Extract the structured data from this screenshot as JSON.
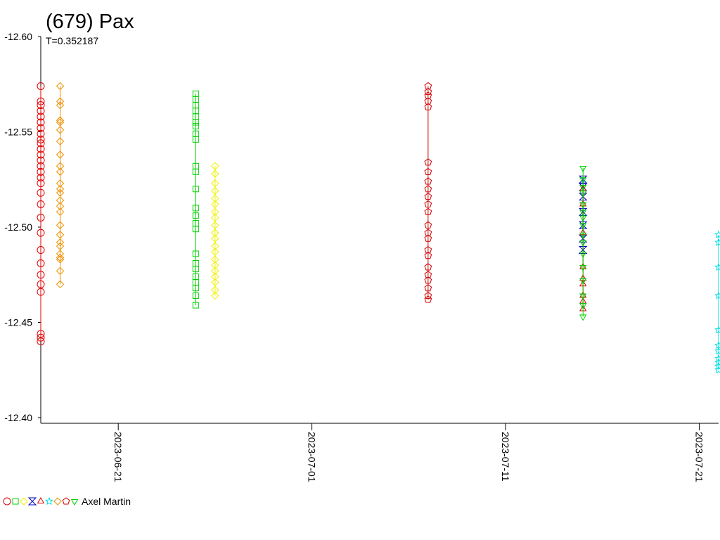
{
  "chart_data": {
    "type": "scatter",
    "title": "(679) Pax",
    "subtitle": "T=0.352187",
    "observer": "Axel Martin",
    "xlim": [
      "2023-06-17",
      "2023-07-22"
    ],
    "xticks": [
      "2023-06-21",
      "2023-07-01",
      "2023-07-11",
      "2023-07-21"
    ],
    "ylim": [
      -12.4,
      -12.6
    ],
    "yticks": [
      {
        "value": -12.6,
        "label": "-12.60"
      },
      {
        "value": -12.55,
        "label": "-12.55"
      },
      {
        "value": -12.5,
        "label": "-12.50"
      },
      {
        "value": -12.45,
        "label": "-12.45"
      },
      {
        "value": -12.4,
        "label": "-12.40"
      }
    ],
    "series": [
      {
        "marker": "circle",
        "color": "#e00000",
        "x": [
          "2023-06-17",
          "2023-06-17",
          "2023-06-17",
          "2023-06-17",
          "2023-06-17",
          "2023-06-17",
          "2023-06-17",
          "2023-06-17",
          "2023-06-17",
          "2023-06-17",
          "2023-06-17",
          "2023-06-17",
          "2023-06-17",
          "2023-06-17",
          "2023-06-17",
          "2023-06-17",
          "2023-06-17",
          "2023-06-17",
          "2023-06-17",
          "2023-06-17",
          "2023-06-17",
          "2023-06-17",
          "2023-06-17",
          "2023-06-17",
          "2023-06-17",
          "2023-06-17",
          "2023-06-17",
          "2023-06-17",
          "2023-06-17"
        ],
        "values": [
          -12.574,
          -12.566,
          -12.564,
          -12.561,
          -12.558,
          -12.555,
          -12.552,
          -12.549,
          -12.546,
          -12.544,
          -12.541,
          -12.538,
          -12.535,
          -12.532,
          -12.529,
          -12.526,
          -12.523,
          -12.518,
          -12.512,
          -12.505,
          -12.497,
          -12.488,
          -12.481,
          -12.475,
          -12.47,
          -12.466,
          -12.444,
          -12.442,
          -12.44
        ]
      },
      {
        "marker": "square",
        "color": "#00d000",
        "x": [
          "2023-06-25",
          "2023-06-25",
          "2023-06-25",
          "2023-06-25",
          "2023-06-25",
          "2023-06-25",
          "2023-06-25",
          "2023-06-25",
          "2023-06-25",
          "2023-06-25",
          "2023-06-25",
          "2023-06-25",
          "2023-06-25",
          "2023-06-25",
          "2023-06-25",
          "2023-06-25",
          "2023-06-25",
          "2023-06-25",
          "2023-06-25",
          "2023-06-25",
          "2023-06-25",
          "2023-06-25",
          "2023-06-25",
          "2023-06-25"
        ],
        "values": [
          -12.57,
          -12.567,
          -12.564,
          -12.561,
          -12.558,
          -12.555,
          -12.553,
          -12.549,
          -12.546,
          -12.532,
          -12.529,
          -12.52,
          -12.51,
          -12.506,
          -12.502,
          -12.499,
          -12.486,
          -12.481,
          -12.478,
          -12.474,
          -12.471,
          -12.468,
          -12.464,
          -12.459
        ]
      },
      {
        "marker": "diamond",
        "color": "#f0f000",
        "x": [
          "2023-06-26",
          "2023-06-26",
          "2023-06-26",
          "2023-06-26",
          "2023-06-26",
          "2023-06-26",
          "2023-06-26",
          "2023-06-26",
          "2023-06-26",
          "2023-06-26",
          "2023-06-26",
          "2023-06-26",
          "2023-06-26",
          "2023-06-26",
          "2023-06-26",
          "2023-06-26",
          "2023-06-26",
          "2023-06-26",
          "2023-06-26",
          "2023-06-26"
        ],
        "values": [
          -12.532,
          -12.528,
          -12.523,
          -12.519,
          -12.515,
          -12.512,
          -12.508,
          -12.505,
          -12.501,
          -12.497,
          -12.494,
          -12.49,
          -12.487,
          -12.483,
          -12.48,
          -12.477,
          -12.474,
          -12.471,
          -12.467,
          -12.464
        ]
      },
      {
        "marker": "bowtie",
        "color": "#0000c0",
        "x": [
          "2023-07-15",
          "2023-07-15",
          "2023-07-15",
          "2023-07-15",
          "2023-07-15",
          "2023-07-15",
          "2023-07-15"
        ],
        "values": [
          -12.525,
          -12.521,
          -12.516,
          -12.508,
          -12.501,
          -12.494,
          -12.488
        ]
      },
      {
        "marker": "triangle",
        "color": "#e00000",
        "x": [
          "2023-07-15",
          "2023-07-15",
          "2023-07-15",
          "2023-07-15",
          "2023-07-15",
          "2023-07-15",
          "2023-07-15",
          "2023-07-15",
          "2023-07-15"
        ],
        "values": [
          -12.52,
          -12.512,
          -12.497,
          -12.479,
          -12.473,
          -12.47,
          -12.464,
          -12.461,
          -12.457
        ]
      },
      {
        "marker": "star",
        "color": "#00e0e0",
        "x": [
          "2023-07-22",
          "2023-07-22",
          "2023-07-22",
          "2023-07-22",
          "2023-07-22",
          "2023-07-22",
          "2023-07-22",
          "2023-07-22",
          "2023-07-22",
          "2023-07-22",
          "2023-07-22"
        ],
        "values": [
          -12.496,
          -12.492,
          -12.479,
          -12.464,
          -12.446,
          -12.438,
          -12.435,
          -12.431,
          -12.429,
          -12.427,
          -12.425
        ]
      },
      {
        "marker": "diamond",
        "color": "#f09000",
        "x": [
          "2023-06-18",
          "2023-06-18",
          "2023-06-18",
          "2023-06-18",
          "2023-06-18",
          "2023-06-18",
          "2023-06-18",
          "2023-06-18",
          "2023-06-18",
          "2023-06-18",
          "2023-06-18",
          "2023-06-18",
          "2023-06-18",
          "2023-06-18",
          "2023-06-18",
          "2023-06-18",
          "2023-06-18",
          "2023-06-18",
          "2023-06-18",
          "2023-06-18",
          "2023-06-18",
          "2023-06-18",
          "2023-06-18",
          "2023-06-18",
          "2023-06-18"
        ],
        "values": [
          -12.574,
          -12.566,
          -12.564,
          -12.556,
          -12.555,
          -12.551,
          -12.545,
          -12.538,
          -12.532,
          -12.529,
          -12.523,
          -12.52,
          -12.518,
          -12.514,
          -12.511,
          -12.508,
          -12.501,
          -12.496,
          -12.492,
          -12.49,
          -12.486,
          -12.484,
          -12.483,
          -12.477,
          -12.47
        ]
      },
      {
        "marker": "pentagon",
        "color": "#d00000",
        "x": [
          "2023-07-07",
          "2023-07-07",
          "2023-07-07",
          "2023-07-07",
          "2023-07-07",
          "2023-07-07",
          "2023-07-07",
          "2023-07-07",
          "2023-07-07",
          "2023-07-07",
          "2023-07-07",
          "2023-07-07",
          "2023-07-07",
          "2023-07-07",
          "2023-07-07",
          "2023-07-07",
          "2023-07-07",
          "2023-07-07",
          "2023-07-07",
          "2023-07-07",
          "2023-07-07",
          "2023-07-07",
          "2023-07-07"
        ],
        "values": [
          -12.574,
          -12.571,
          -12.569,
          -12.566,
          -12.563,
          -12.534,
          -12.529,
          -12.524,
          -12.52,
          -12.516,
          -12.512,
          -12.508,
          -12.501,
          -12.497,
          -12.494,
          -12.488,
          -12.485,
          -12.479,
          -12.475,
          -12.472,
          -12.468,
          -12.464,
          -12.462
        ]
      },
      {
        "marker": "triangle-down",
        "color": "#00d000",
        "x": [
          "2023-07-15",
          "2023-07-15",
          "2023-07-15",
          "2023-07-15",
          "2023-07-15",
          "2023-07-15",
          "2023-07-15",
          "2023-07-15",
          "2023-07-15",
          "2023-07-15",
          "2023-07-15",
          "2023-07-15",
          "2023-07-15",
          "2023-07-15",
          "2023-07-15",
          "2023-07-15"
        ],
        "values": [
          -12.531,
          -12.525,
          -12.521,
          -12.518,
          -12.512,
          -12.508,
          -12.505,
          -12.501,
          -12.496,
          -12.492,
          -12.486,
          -12.479,
          -12.472,
          -12.464,
          -12.459,
          -12.453
        ]
      }
    ]
  }
}
